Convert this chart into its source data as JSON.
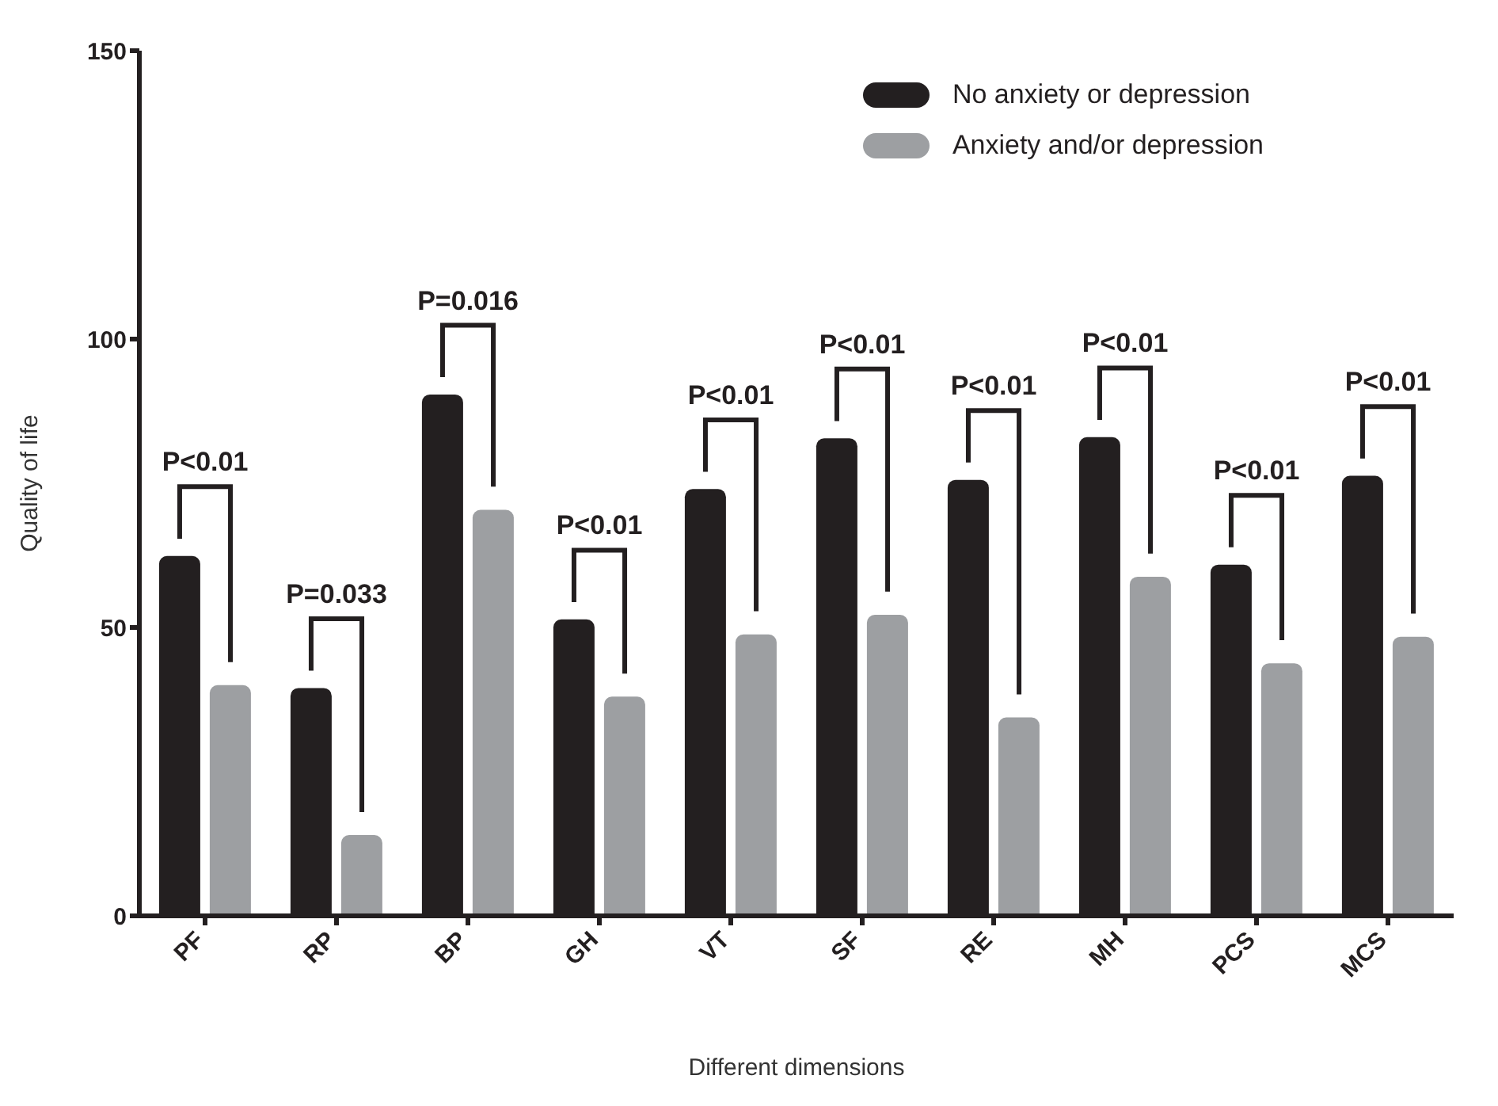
{
  "chart_data": {
    "type": "bar",
    "xlabel": "Different dimensions",
    "ylabel": "Quality of life",
    "categories": [
      "PF",
      "RP",
      "BP",
      "GH",
      "VT",
      "SF",
      "RE",
      "MH",
      "PCS",
      "MCS"
    ],
    "series": [
      {
        "name": "No anxiety or depression",
        "color": "#231f20",
        "values": [
          62.4,
          39.5,
          90.4,
          51.4,
          74,
          82.8,
          75.6,
          83,
          60.9,
          76.3
        ]
      },
      {
        "name": "Anxiety and/or depression",
        "color": "#9d9fa2",
        "values": [
          40,
          14,
          70.4,
          38,
          48.8,
          52.2,
          34.4,
          58.8,
          43.8,
          48.4
        ]
      }
    ],
    "annotations": [
      "P<0.01",
      "P=0.033",
      "P=0.016",
      "P<0.01",
      "P<0.01",
      "P<0.01",
      "P<0.01",
      "P<0.01",
      "P<0.01",
      "P<0.01"
    ],
    "ylim": [
      0,
      150
    ],
    "yticks": [
      0,
      50,
      100,
      150
    ],
    "grid": false,
    "legend": "top right"
  }
}
